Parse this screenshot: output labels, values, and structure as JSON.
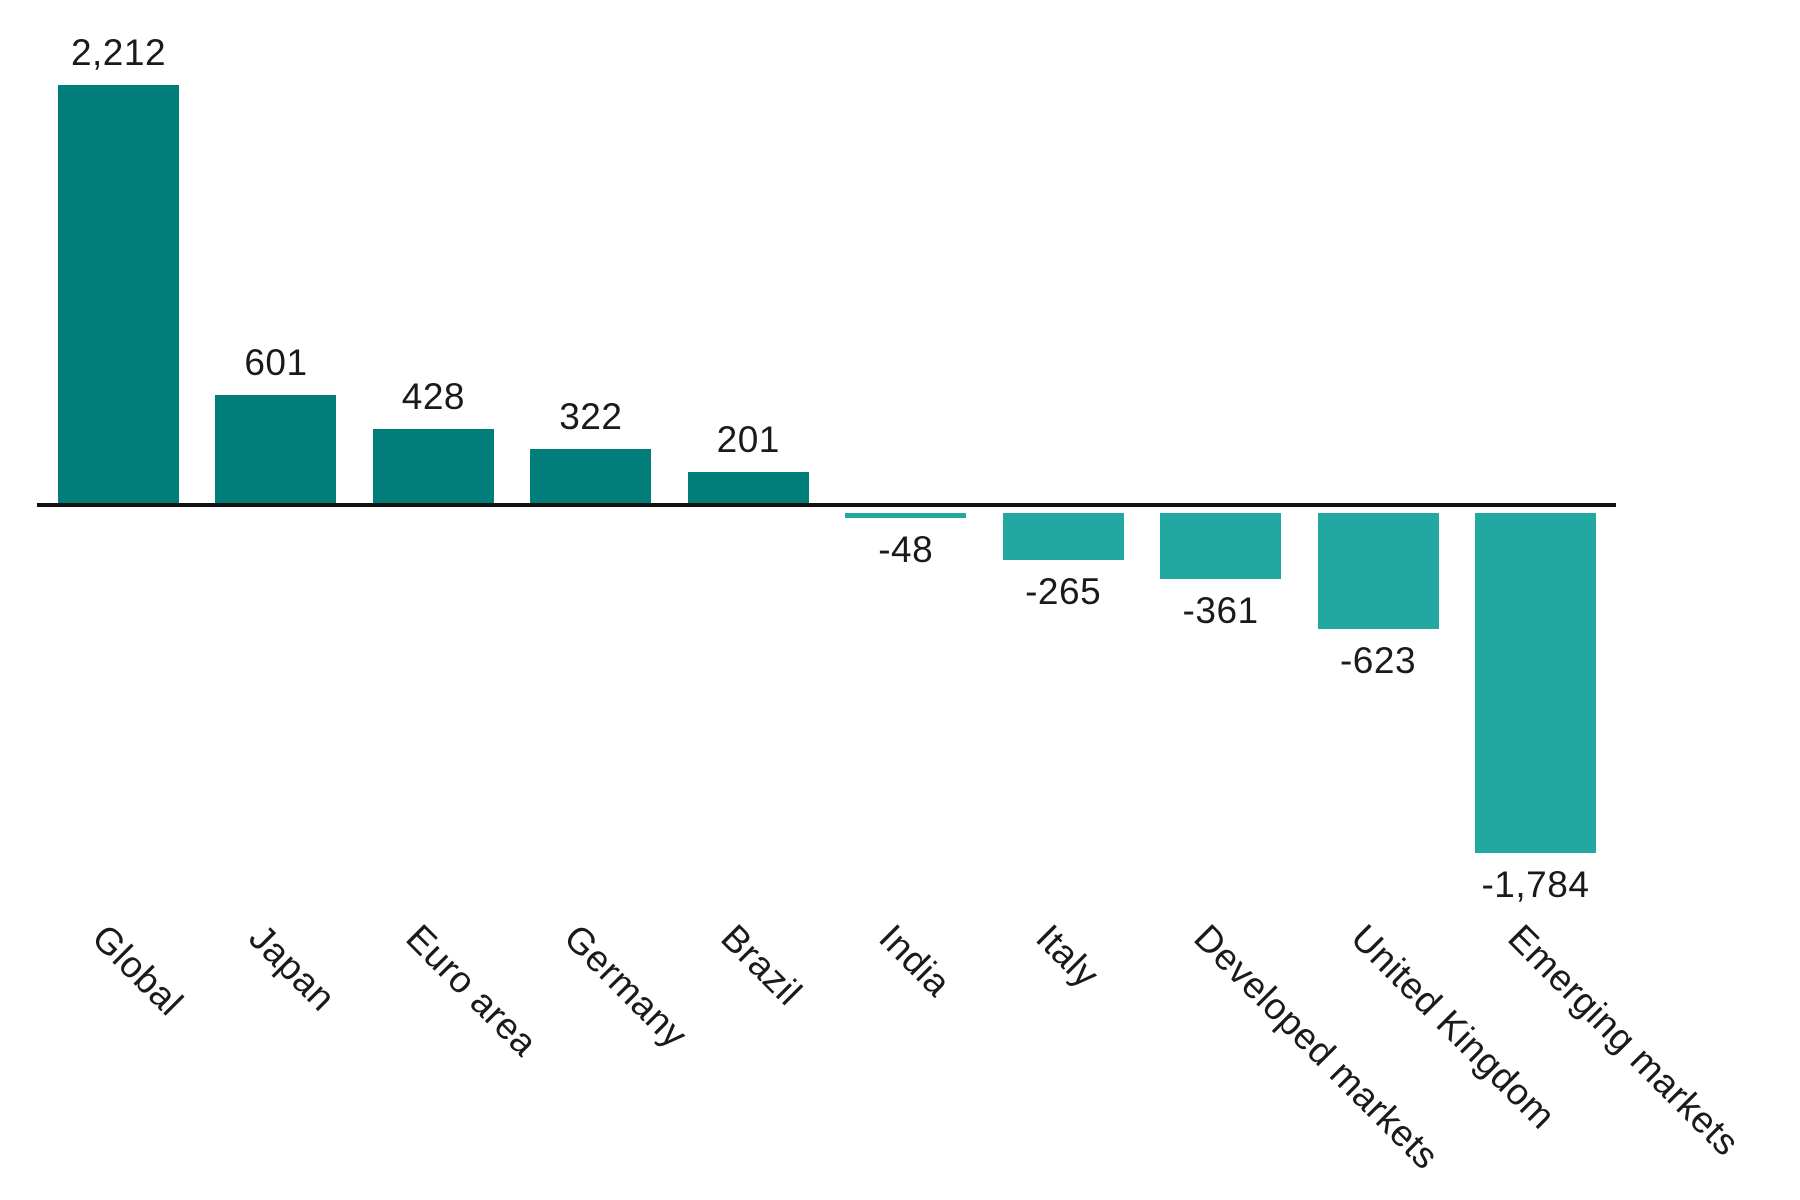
{
  "colors": {
    "positive_bar": "#007D79",
    "negative_bar": "#22A8A0",
    "bar_edge": "#ffffff",
    "axis_line": "#111111",
    "label_text": "#1a1a1a",
    "background": "#ffffff"
  },
  "chart_data": {
    "type": "bar",
    "title": "",
    "xlabel": "",
    "ylabel": "",
    "categories": [
      "Global",
      "Japan",
      "Euro area",
      "Germany",
      "Brazil",
      "India",
      "Italy",
      "Developed markets",
      "United Kingdom",
      "Emerging markets"
    ],
    "values": [
      2212,
      601,
      428,
      322,
      201,
      -48,
      -265,
      -361,
      -623,
      -1784
    ],
    "value_labels": [
      "2,212",
      "601",
      "428",
      "322",
      "201",
      "-48",
      "-265",
      "-361",
      "-623",
      "-1,784"
    ],
    "ylim": [
      -1784,
      2212
    ],
    "grid": false,
    "legend_position": "none",
    "value_labels_shown": true,
    "category_label_rotation_deg": 45,
    "zero_line": true,
    "bar_color_rule": "positive values dark teal, negative values light teal"
  }
}
